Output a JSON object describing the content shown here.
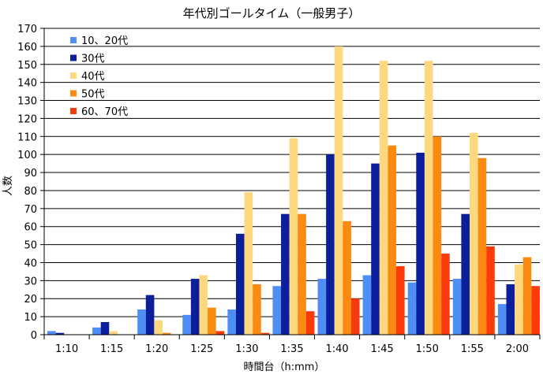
{
  "chart_data": {
    "type": "bar",
    "title": "年代別ゴールタイム（一般男子）",
    "xlabel": "時間台（h:mm）",
    "ylabel": "人数",
    "ylim": [
      0,
      170
    ],
    "ytick_step": 10,
    "grid": true,
    "legend_position": "top-left",
    "categories": [
      "1:10",
      "1:15",
      "1:20",
      "1:25",
      "1:30",
      "1:35",
      "1:40",
      "1:45",
      "1:50",
      "1:55",
      "2:00"
    ],
    "series": [
      {
        "name": "10、20代",
        "color": "#4f8ef5",
        "values": [
          2,
          4,
          14,
          11,
          14,
          27,
          31,
          33,
          29,
          31,
          17
        ]
      },
      {
        "name": "30代",
        "color": "#0b1f9c",
        "values": [
          1,
          7,
          22,
          31,
          56,
          67,
          100,
          95,
          101,
          67,
          28
        ]
      },
      {
        "name": "40代",
        "color": "#fdd87e",
        "values": [
          0,
          2,
          8,
          33,
          79,
          109,
          160,
          152,
          152,
          112,
          39
        ]
      },
      {
        "name": "50代",
        "color": "#fb8a12",
        "values": [
          0,
          0,
          1,
          15,
          28,
          67,
          63,
          105,
          110,
          98,
          43
        ]
      },
      {
        "name": "60、70代",
        "color": "#fb3a0c",
        "values": [
          0,
          0,
          0,
          2,
          1,
          13,
          20,
          38,
          45,
          49,
          27
        ]
      }
    ]
  }
}
